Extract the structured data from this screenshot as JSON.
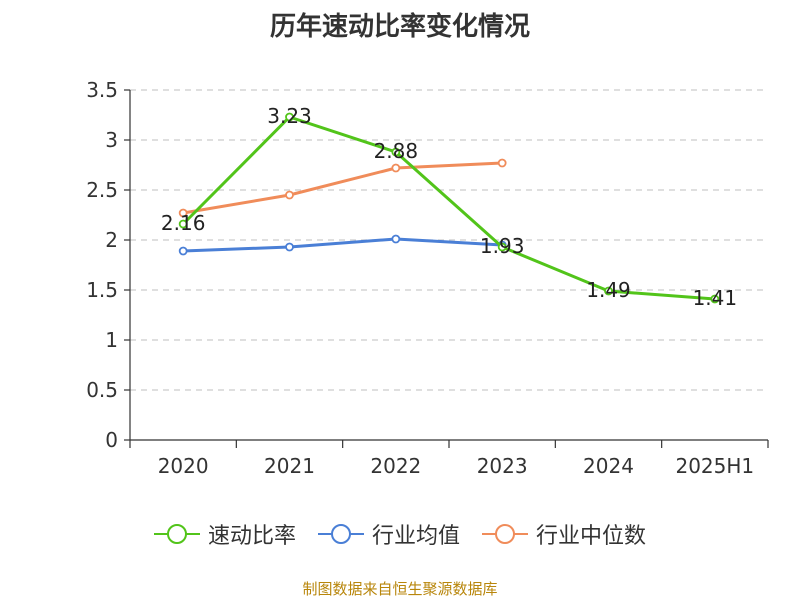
{
  "title": "历年速动比率变化情况",
  "source": "制图数据来自恒生聚源数据库",
  "chart_data": {
    "type": "line",
    "categories": [
      "2020",
      "2021",
      "2022",
      "2023",
      "2024",
      "2025H1"
    ],
    "ylim": [
      0,
      3.5
    ],
    "yticks": [
      "0",
      "0.5",
      "1",
      "1.5",
      "2",
      "2.5",
      "3",
      "3.5"
    ],
    "grid": true,
    "legend_position": "bottom",
    "series": [
      {
        "name": "速动比率",
        "color": "#52c41a",
        "values": [
          2.16,
          3.23,
          2.88,
          1.93,
          1.49,
          1.41
        ],
        "labels": [
          "2.16",
          "3.23",
          "2.88",
          "1.93",
          "1.49",
          "1.41"
        ]
      },
      {
        "name": "行业均值",
        "color": "#4a7fd6",
        "values": [
          1.89,
          1.93,
          2.01,
          1.95,
          null,
          null
        ]
      },
      {
        "name": "行业中位数",
        "color": "#f08c5a",
        "values": [
          2.27,
          2.45,
          2.72,
          2.77,
          null,
          null
        ]
      }
    ]
  }
}
